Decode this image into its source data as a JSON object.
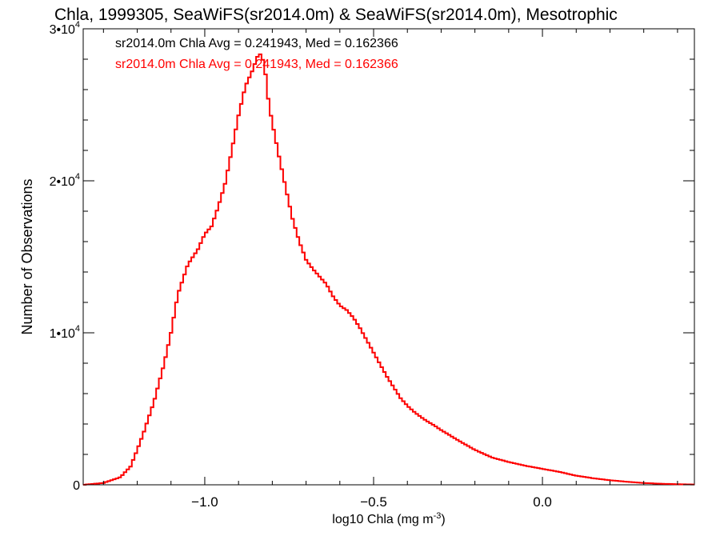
{
  "chart_data": {
    "type": "line",
    "title": "Chla, 1999305, SeaWiFS(sr2014.0m) & SeaWiFS(sr2014.0m), Mesotrophic",
    "xlabel_base": "log10 Chla (mg m",
    "xlabel_sup": "-3",
    "xlabel_close": ")",
    "ylabel": "Number of Observations",
    "xlim": [
      -1.36,
      0.45
    ],
    "ylim": [
      0,
      30000
    ],
    "xticks": [
      {
        "value": -1.0,
        "label": "−1.0"
      },
      {
        "value": -0.5,
        "label": "−0.5"
      },
      {
        "value": 0.0,
        "label": "0.0"
      }
    ],
    "yticks": [
      {
        "value": 0,
        "label": "0",
        "exp": ""
      },
      {
        "value": 10000,
        "label": "1•10",
        "exp": "4"
      },
      {
        "value": 20000,
        "label": "2•10",
        "exp": "4"
      },
      {
        "value": 30000,
        "label": "3•10",
        "exp": "4"
      }
    ],
    "legend": [
      {
        "text": "sr2014.0m Chla Avg = 0.241943, Med = 0.162366",
        "color": "#000000"
      },
      {
        "text": "sr2014.0m Chla Avg = 0.241943, Med = 0.162366",
        "color": "#ff0000"
      }
    ],
    "series": [
      {
        "color": "#000000",
        "points": [
          [
            -1.36,
            0
          ],
          [
            -1.3,
            120
          ],
          [
            -1.25,
            500
          ],
          [
            -1.22,
            1200
          ],
          [
            -1.2,
            2300
          ],
          [
            -1.18,
            3500
          ],
          [
            -1.15,
            5500
          ],
          [
            -1.12,
            8000
          ],
          [
            -1.1,
            10000
          ],
          [
            -1.08,
            12500
          ],
          [
            -1.05,
            14500
          ],
          [
            -1.02,
            15500
          ],
          [
            -1.0,
            16500
          ],
          [
            -0.98,
            17000
          ],
          [
            -0.96,
            18300
          ],
          [
            -0.94,
            19800
          ],
          [
            -0.92,
            22000
          ],
          [
            -0.9,
            24300
          ],
          [
            -0.88,
            26200
          ],
          [
            -0.86,
            27200
          ],
          [
            -0.84,
            28400
          ],
          [
            -0.83,
            28200
          ],
          [
            -0.82,
            27000
          ],
          [
            -0.81,
            25000
          ],
          [
            -0.8,
            23800
          ],
          [
            -0.78,
            21600
          ],
          [
            -0.76,
            19500
          ],
          [
            -0.74,
            17500
          ],
          [
            -0.72,
            16000
          ],
          [
            -0.7,
            14800
          ],
          [
            -0.68,
            14200
          ],
          [
            -0.66,
            13700
          ],
          [
            -0.64,
            13200
          ],
          [
            -0.62,
            12400
          ],
          [
            -0.6,
            11800
          ],
          [
            -0.58,
            11500
          ],
          [
            -0.56,
            11000
          ],
          [
            -0.54,
            10300
          ],
          [
            -0.52,
            9500
          ],
          [
            -0.5,
            8700
          ],
          [
            -0.48,
            7900
          ],
          [
            -0.46,
            7100
          ],
          [
            -0.44,
            6400
          ],
          [
            -0.42,
            5700
          ],
          [
            -0.4,
            5200
          ],
          [
            -0.38,
            4800
          ],
          [
            -0.35,
            4300
          ],
          [
            -0.32,
            3900
          ],
          [
            -0.3,
            3600
          ],
          [
            -0.27,
            3200
          ],
          [
            -0.24,
            2800
          ],
          [
            -0.2,
            2300
          ],
          [
            -0.15,
            1800
          ],
          [
            -0.1,
            1500
          ],
          [
            -0.05,
            1250
          ],
          [
            0.0,
            1050
          ],
          [
            0.05,
            850
          ],
          [
            0.1,
            600
          ],
          [
            0.15,
            430
          ],
          [
            0.2,
            300
          ],
          [
            0.25,
            200
          ],
          [
            0.3,
            120
          ],
          [
            0.35,
            70
          ],
          [
            0.4,
            40
          ],
          [
            0.45,
            20
          ]
        ]
      },
      {
        "color": "#ff0000",
        "points": [
          [
            -1.36,
            0
          ],
          [
            -1.3,
            120
          ],
          [
            -1.25,
            500
          ],
          [
            -1.22,
            1200
          ],
          [
            -1.2,
            2300
          ],
          [
            -1.18,
            3500
          ],
          [
            -1.15,
            5500
          ],
          [
            -1.12,
            8000
          ],
          [
            -1.1,
            10000
          ],
          [
            -1.08,
            12500
          ],
          [
            -1.05,
            14500
          ],
          [
            -1.02,
            15500
          ],
          [
            -1.0,
            16500
          ],
          [
            -0.98,
            17000
          ],
          [
            -0.96,
            18300
          ],
          [
            -0.94,
            19800
          ],
          [
            -0.92,
            22000
          ],
          [
            -0.9,
            24300
          ],
          [
            -0.88,
            26200
          ],
          [
            -0.86,
            27200
          ],
          [
            -0.84,
            28400
          ],
          [
            -0.83,
            28200
          ],
          [
            -0.82,
            27000
          ],
          [
            -0.81,
            25000
          ],
          [
            -0.8,
            23800
          ],
          [
            -0.78,
            21600
          ],
          [
            -0.76,
            19500
          ],
          [
            -0.74,
            17500
          ],
          [
            -0.72,
            16000
          ],
          [
            -0.7,
            14800
          ],
          [
            -0.68,
            14200
          ],
          [
            -0.66,
            13700
          ],
          [
            -0.64,
            13200
          ],
          [
            -0.62,
            12400
          ],
          [
            -0.6,
            11800
          ],
          [
            -0.58,
            11500
          ],
          [
            -0.56,
            11000
          ],
          [
            -0.54,
            10300
          ],
          [
            -0.52,
            9500
          ],
          [
            -0.5,
            8700
          ],
          [
            -0.48,
            7900
          ],
          [
            -0.46,
            7100
          ],
          [
            -0.44,
            6400
          ],
          [
            -0.42,
            5700
          ],
          [
            -0.4,
            5200
          ],
          [
            -0.38,
            4800
          ],
          [
            -0.35,
            4300
          ],
          [
            -0.32,
            3900
          ],
          [
            -0.3,
            3600
          ],
          [
            -0.27,
            3200
          ],
          [
            -0.24,
            2800
          ],
          [
            -0.2,
            2300
          ],
          [
            -0.15,
            1800
          ],
          [
            -0.1,
            1500
          ],
          [
            -0.05,
            1250
          ],
          [
            0.0,
            1050
          ],
          [
            0.05,
            850
          ],
          [
            0.1,
            600
          ],
          [
            0.15,
            430
          ],
          [
            0.2,
            300
          ],
          [
            0.25,
            200
          ],
          [
            0.3,
            120
          ],
          [
            0.35,
            70
          ],
          [
            0.4,
            40
          ],
          [
            0.45,
            20
          ]
        ]
      }
    ],
    "grid": false,
    "legend_position": "top-left"
  }
}
